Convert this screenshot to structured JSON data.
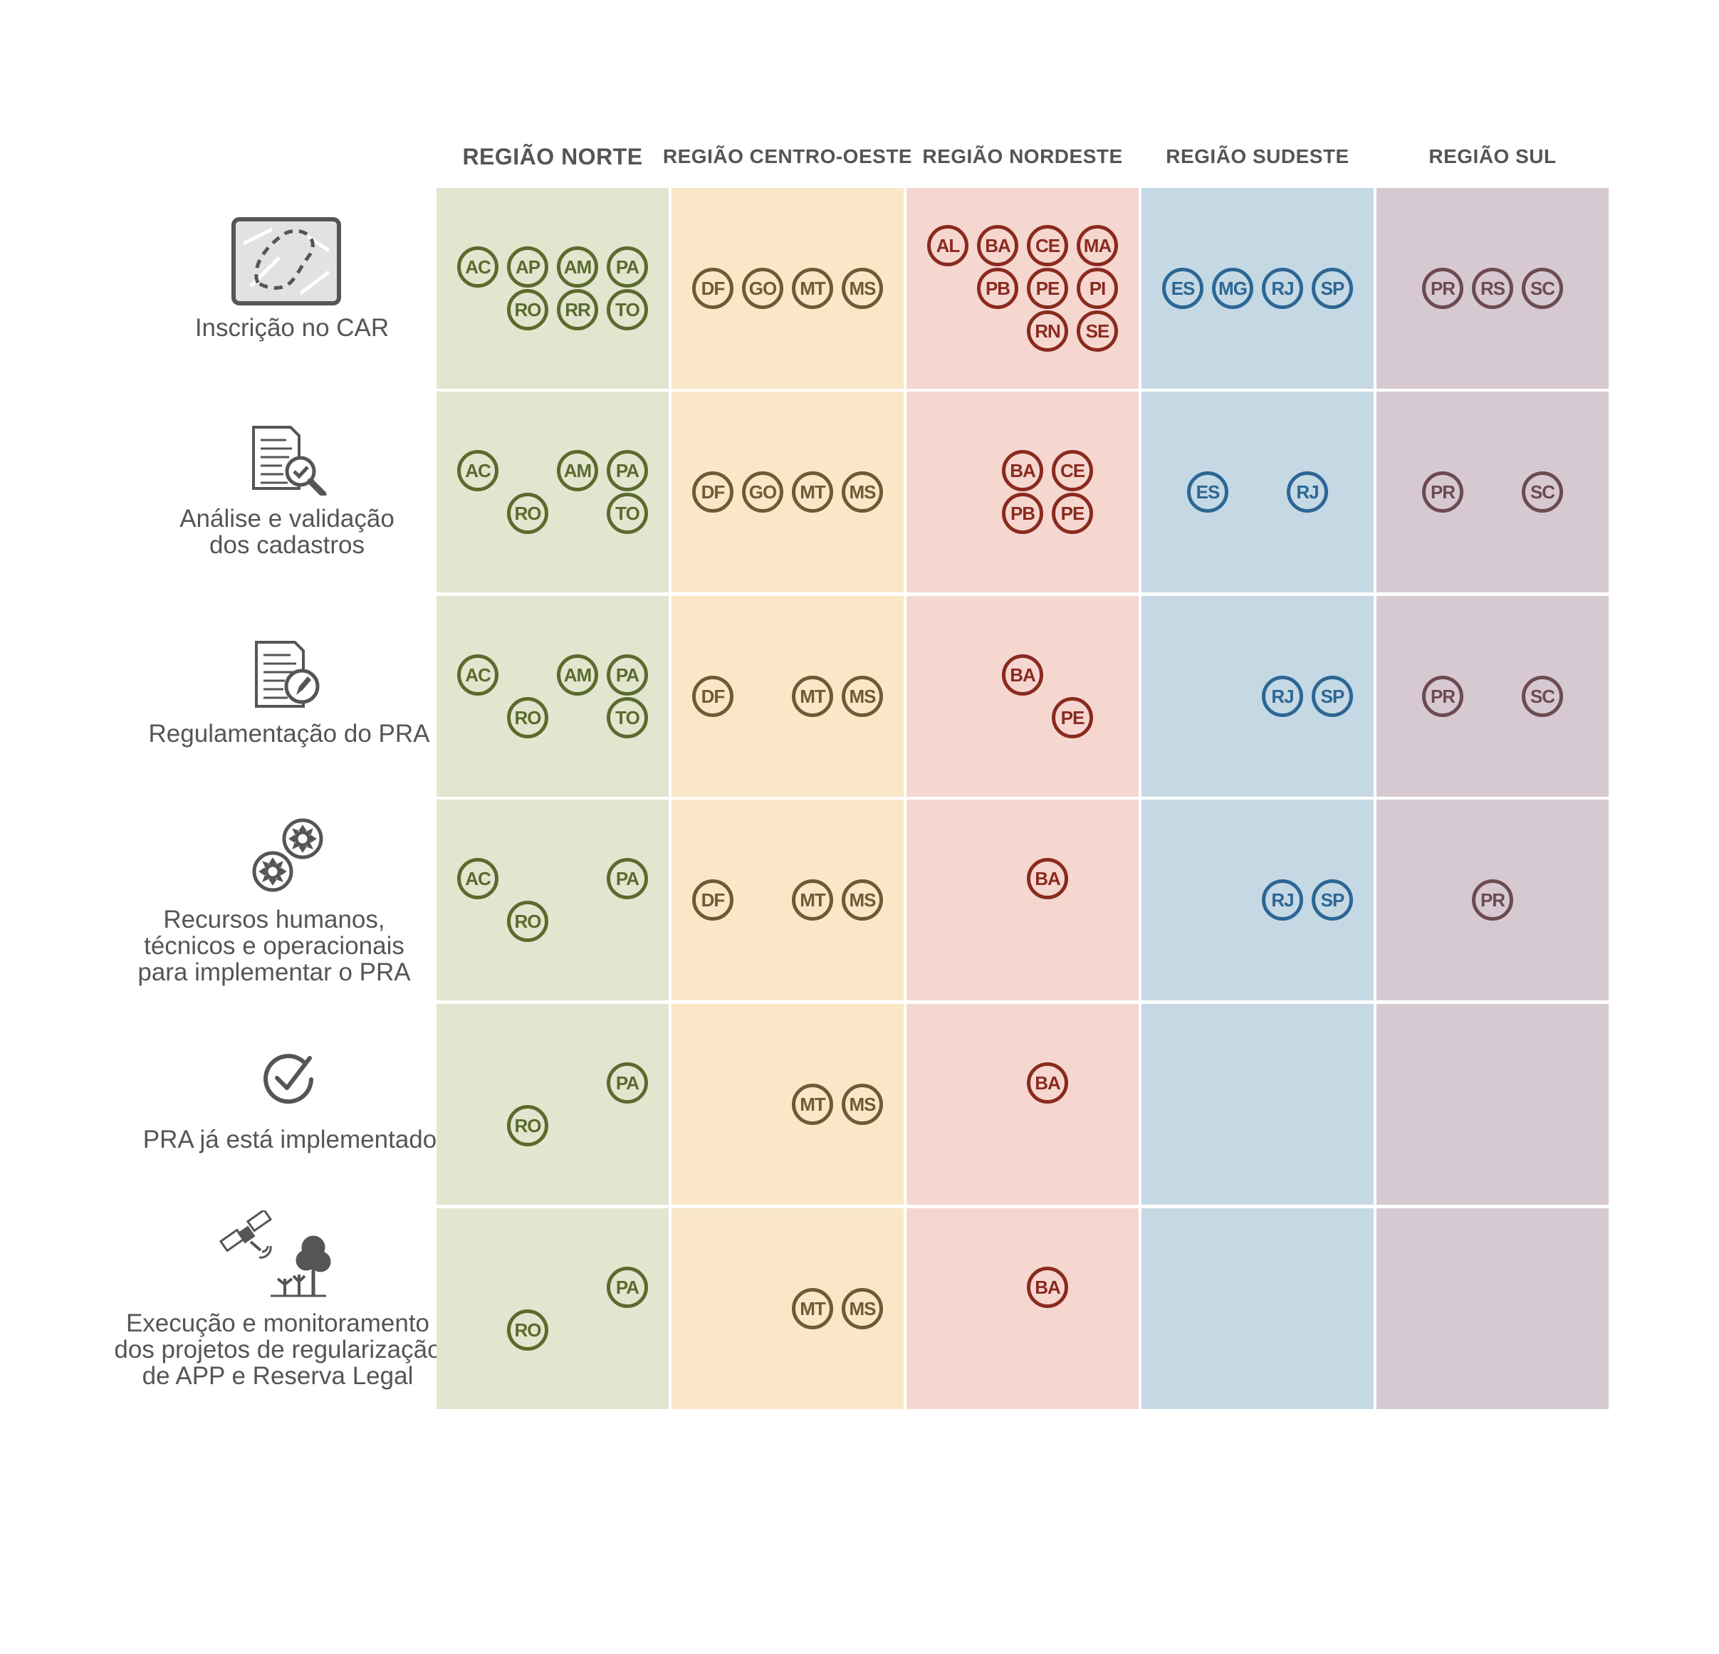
{
  "regions": [
    {
      "id": "norte",
      "label": "REGIÃO NORTE",
      "bg": "#e2e6cf",
      "color": "#5b6a2e"
    },
    {
      "id": "centro-oeste",
      "label": "REGIÃO CENTRO-OESTE",
      "bg": "#f9e7c7",
      "color": "#6e5b35"
    },
    {
      "id": "nordeste",
      "label": "REGIÃO NORDESTE",
      "bg": "#f5d7d0",
      "color": "#8a2a1f"
    },
    {
      "id": "sudeste",
      "label": "REGIÃO SUDESTE",
      "bg": "#c5d9e4",
      "color": "#2c6695"
    },
    {
      "id": "sul",
      "label": "REGIÃO SUL",
      "bg": "#d7c9d1",
      "color": "#6c4b50"
    }
  ],
  "rows": [
    {
      "id": "inscricao-car",
      "icon": "map-icon",
      "label_lines": [
        "Inscrição no CAR"
      ],
      "cells": [
        [
          [
            "AC",
            "AP",
            "AM",
            "PA"
          ],
          [
            "",
            "RO",
            "RR",
            "TO"
          ]
        ],
        [
          [
            "DF",
            "GO",
            "MT",
            "MS"
          ]
        ],
        [
          [
            "AL",
            "BA",
            "CE",
            "MA"
          ],
          [
            "",
            "PB",
            "PE",
            "PI"
          ],
          [
            "",
            "",
            "RN",
            "SE"
          ]
        ],
        [
          [
            "ES",
            "MG",
            "RJ",
            "SP"
          ]
        ],
        [
          [
            "PR",
            "RS",
            "SC"
          ]
        ]
      ]
    },
    {
      "id": "analise-validacao",
      "icon": "document-search-icon",
      "label_lines": [
        "Análise e validação",
        "dos cadastros"
      ],
      "cells": [
        [
          [
            "AC",
            "",
            "AM",
            "PA"
          ],
          [
            "",
            "RO",
            "",
            "TO"
          ]
        ],
        [
          [
            "DF",
            "GO",
            "MT",
            "MS"
          ]
        ],
        [
          [
            "",
            "BA",
            "CE"
          ],
          [
            "",
            "PB",
            "PE"
          ]
        ],
        [
          [
            "ES",
            "",
            "RJ"
          ]
        ],
        [
          [
            "PR",
            "",
            "SC"
          ]
        ]
      ]
    },
    {
      "id": "regulamentacao-pra",
      "icon": "document-edit-icon",
      "label_lines": [
        "Regulamentação do PRA"
      ],
      "cells": [
        [
          [
            "AC",
            "",
            "AM",
            "PA"
          ],
          [
            "",
            "RO",
            "",
            "TO"
          ]
        ],
        [
          [
            "DF",
            "",
            "MT",
            "MS"
          ]
        ],
        [
          [
            "",
            "BA"
          ],
          [
            "",
            "",
            "PE"
          ]
        ],
        [
          [
            "",
            "",
            "RJ",
            "SP"
          ]
        ],
        [
          [
            "PR",
            "",
            "SC"
          ]
        ]
      ]
    },
    {
      "id": "recursos-humanos",
      "icon": "gears-icon",
      "label_lines": [
        "Recursos humanos,",
        "técnicos e operacionais",
        "para implementar o PRA"
      ],
      "cells": [
        [
          [
            "AC",
            "",
            "",
            "PA"
          ],
          [
            "",
            "RO"
          ]
        ],
        [
          [
            "DF",
            "",
            "MT",
            "MS"
          ]
        ],
        [
          [
            "",
            "BA"
          ],
          []
        ],
        [
          [
            "",
            "",
            "RJ",
            "SP"
          ]
        ],
        [
          [
            "PR"
          ]
        ]
      ]
    },
    {
      "id": "pra-implementado",
      "icon": "check-circle-icon",
      "label_lines": [
        "PRA já está implementado"
      ],
      "cells": [
        [
          [
            "",
            "",
            "",
            "PA"
          ],
          [
            "",
            "RO"
          ]
        ],
        [
          [
            "",
            "",
            "MT",
            "MS"
          ]
        ],
        [
          [
            "",
            "BA"
          ],
          []
        ],
        [],
        []
      ]
    },
    {
      "id": "execucao-monitoramento",
      "icon": "satellite-trees-icon",
      "label_lines": [
        "Execução e monitoramento",
        "dos projetos de regularização",
        "de APP e Reserva Legal"
      ],
      "cells": [
        [
          [
            "",
            "",
            "",
            "PA"
          ],
          [
            "",
            "RO"
          ]
        ],
        [
          [
            "",
            "",
            "MT",
            "MS"
          ]
        ],
        [
          [
            "",
            "BA"
          ],
          []
        ],
        [],
        []
      ]
    }
  ]
}
